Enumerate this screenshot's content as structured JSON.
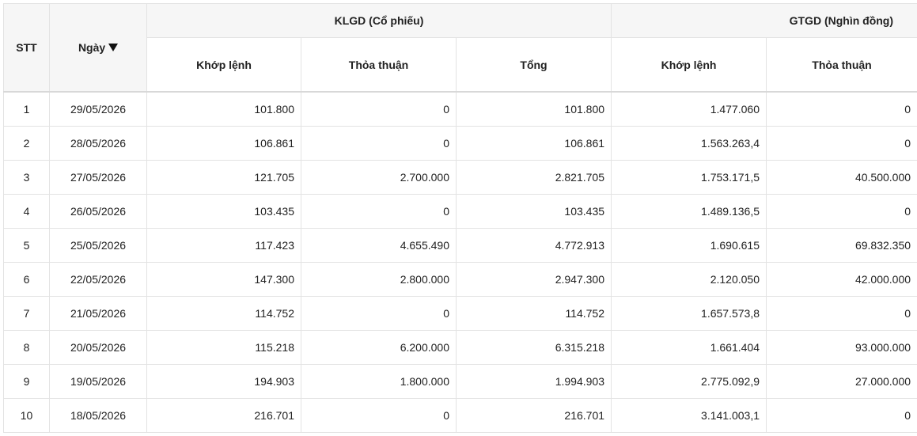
{
  "header": {
    "stt": "STT",
    "date": "Ngày",
    "klgd": {
      "title": "KLGD (Cổ phiếu)",
      "columns": [
        "Khớp lệnh",
        "Thỏa thuận",
        "Tổng"
      ]
    },
    "gtgd": {
      "title": "GTGD (Nghìn đồng)",
      "columns": [
        "Khớp lệnh",
        "Thỏa thuận"
      ]
    }
  },
  "table": {
    "rows": [
      [
        "1",
        "29/05/2026",
        "101.800",
        "0",
        "101.800",
        "1.477.060",
        "0"
      ],
      [
        "2",
        "28/05/2026",
        "106.861",
        "0",
        "106.861",
        "1.563.263,4",
        "0"
      ],
      [
        "3",
        "27/05/2026",
        "121.705",
        "2.700.000",
        "2.821.705",
        "1.753.171,5",
        "40.500.000"
      ],
      [
        "4",
        "26/05/2026",
        "103.435",
        "0",
        "103.435",
        "1.489.136,5",
        "0"
      ],
      [
        "5",
        "25/05/2026",
        "117.423",
        "4.655.490",
        "4.772.913",
        "1.690.615",
        "69.832.350"
      ],
      [
        "6",
        "22/05/2026",
        "147.300",
        "2.800.000",
        "2.947.300",
        "2.120.050",
        "42.000.000"
      ],
      [
        "7",
        "21/05/2026",
        "114.752",
        "0",
        "114.752",
        "1.657.573,8",
        "0"
      ],
      [
        "8",
        "20/05/2026",
        "115.218",
        "6.200.000",
        "6.315.218",
        "1.661.404",
        "93.000.000"
      ],
      [
        "9",
        "19/05/2026",
        "194.903",
        "1.800.000",
        "1.994.903",
        "2.775.092,9",
        "27.000.000"
      ],
      [
        "10",
        "18/05/2026",
        "216.701",
        "0",
        "216.701",
        "3.141.003,1",
        "0"
      ]
    ]
  }
}
